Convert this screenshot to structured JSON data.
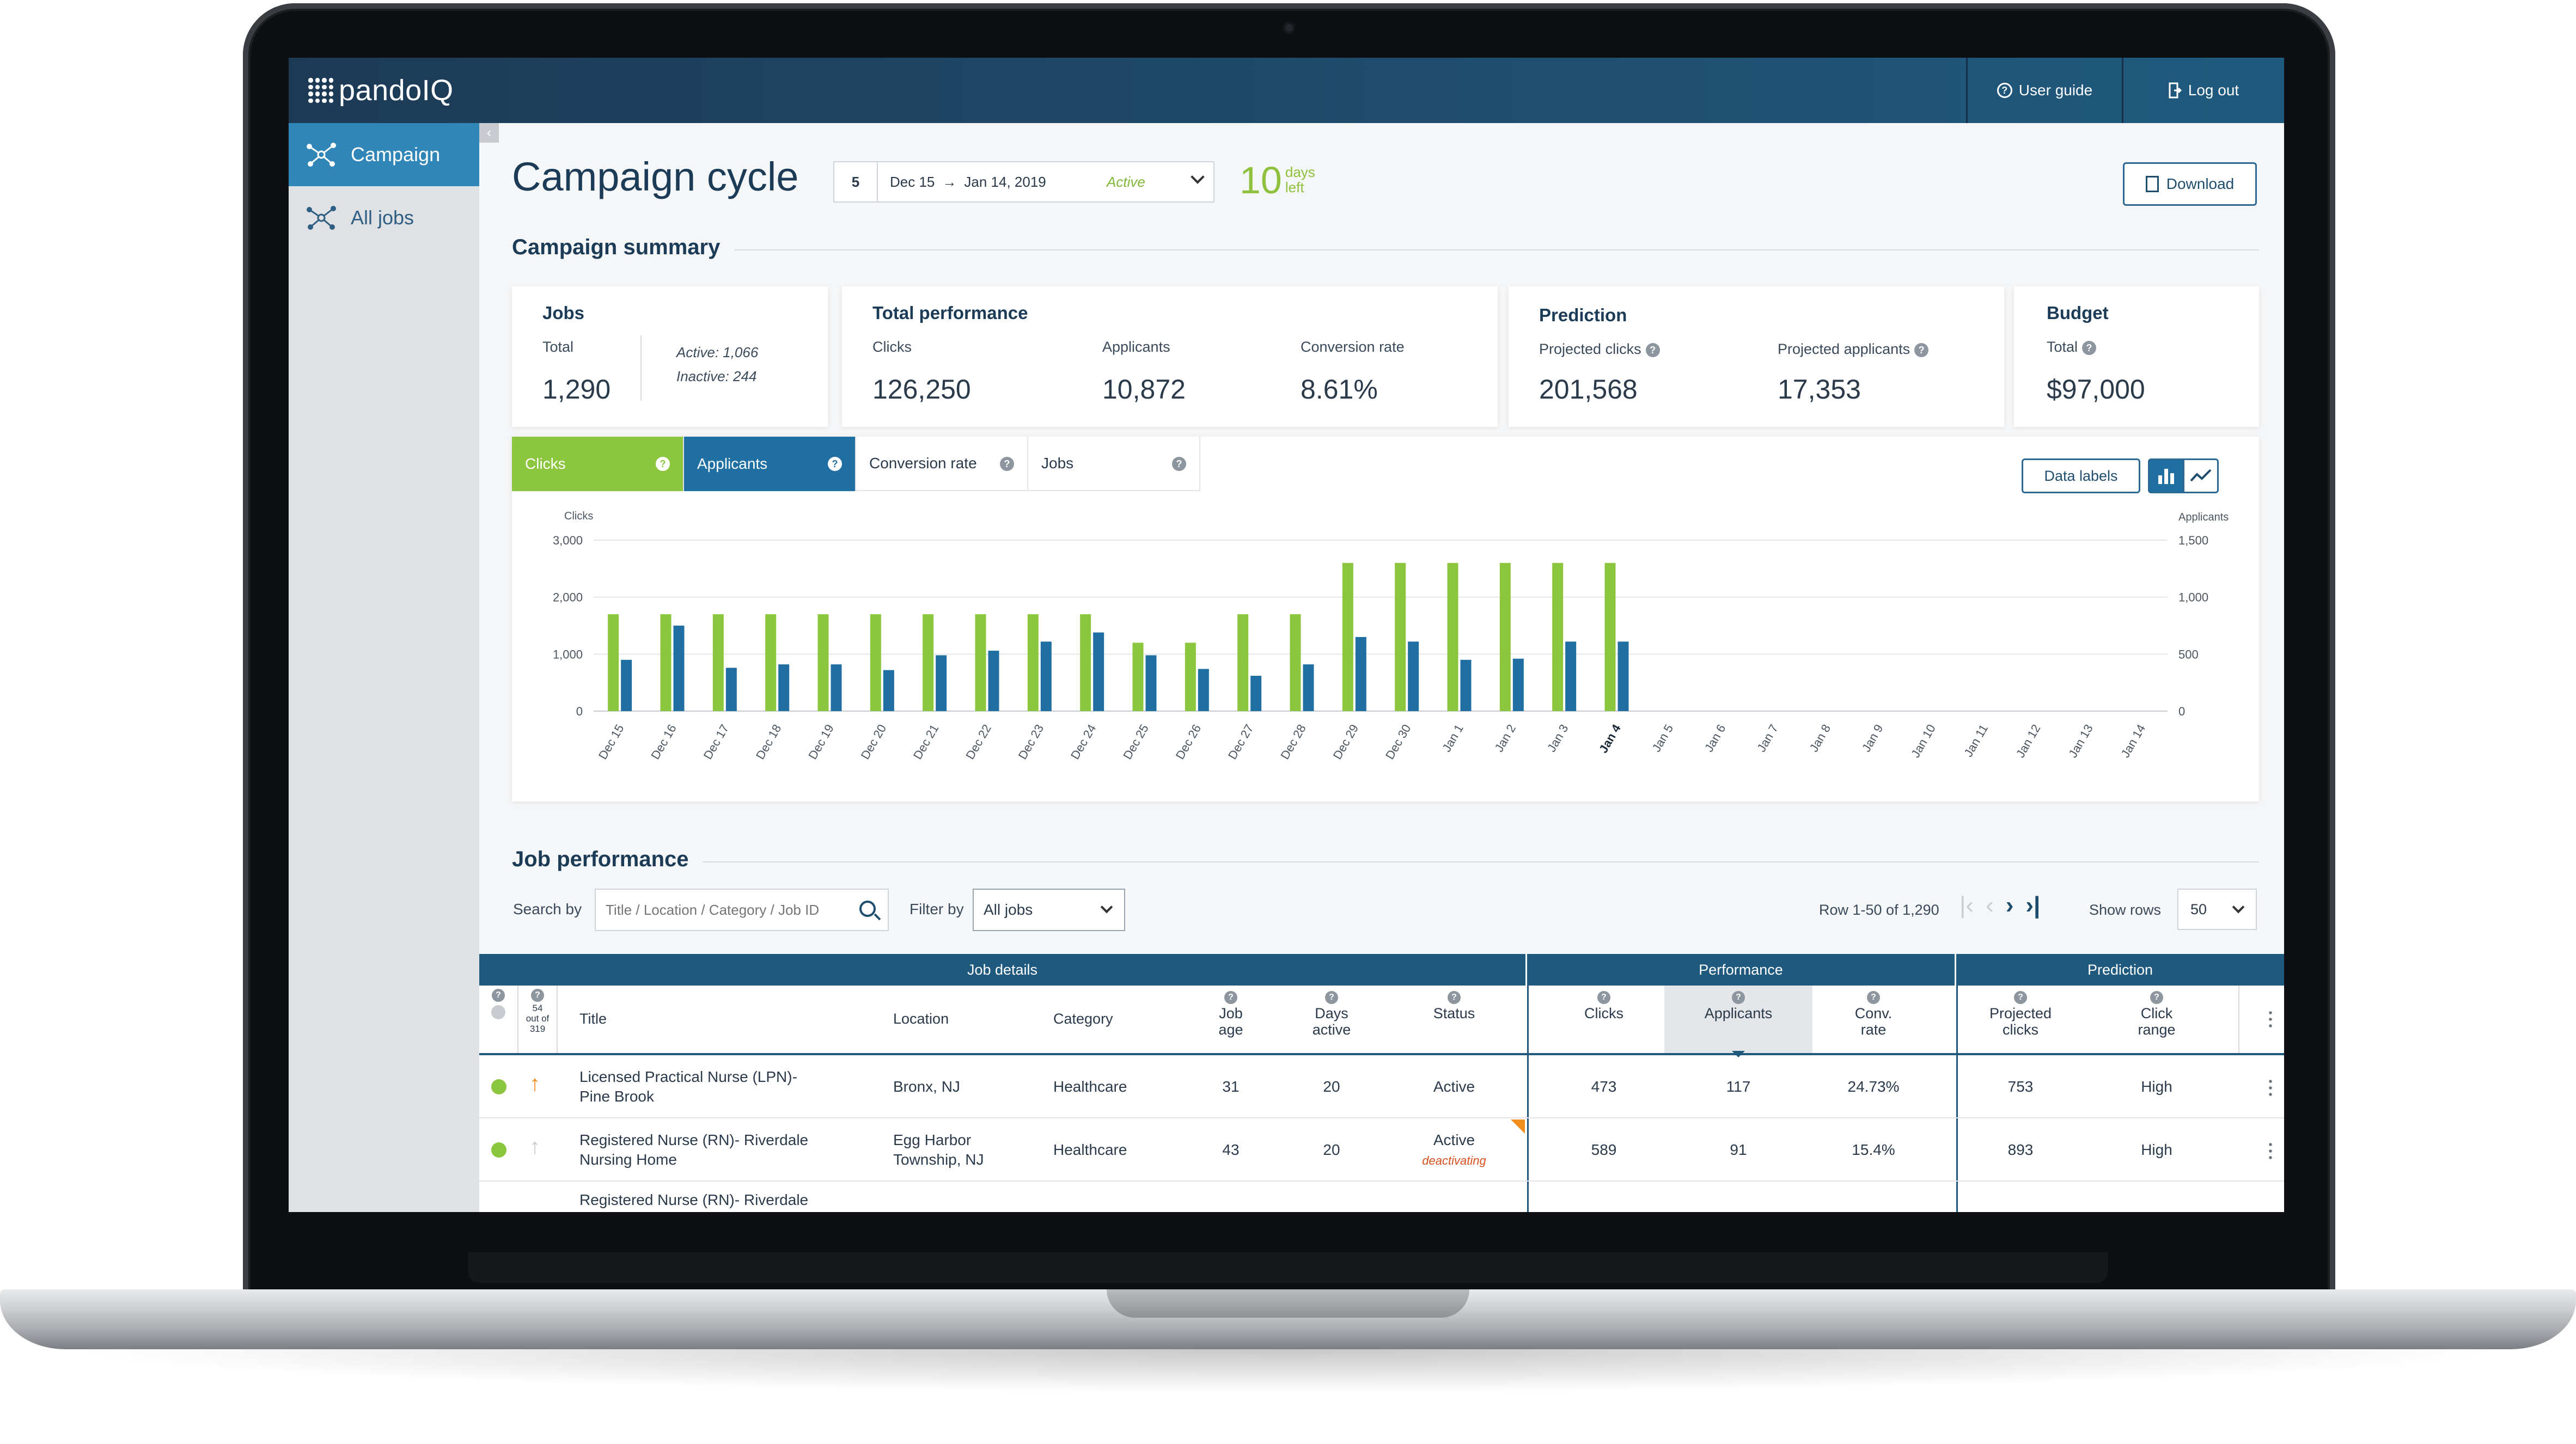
{
  "app": {
    "logo_text": "pandoIQ",
    "user_guide": "User guide",
    "log_out": "Log out"
  },
  "sidebar": {
    "items": [
      {
        "label": "Campaign",
        "icon": "network-icon",
        "active": true
      },
      {
        "label": "All jobs",
        "icon": "network-icon",
        "active": false
      }
    ]
  },
  "header": {
    "title": "Campaign cycle",
    "cycle_number": "5",
    "date_start": "Dec 15",
    "date_end": "Jan 14, 2019",
    "cycle_status": "Active",
    "days_left_number": "10",
    "days_left_word1": "days",
    "days_left_word2": "left",
    "download_label": "Download"
  },
  "summary": {
    "section_title": "Campaign summary",
    "jobs": {
      "title": "Jobs",
      "total_label": "Total",
      "total_value": "1,290",
      "active": "Active: 1,066",
      "inactive": "Inactive: 244"
    },
    "performance": {
      "title": "Total performance",
      "clicks_label": "Clicks",
      "clicks_value": "126,250",
      "applicants_label": "Applicants",
      "applicants_value": "10,872",
      "conv_label": "Conversion rate",
      "conv_value": "8.61%"
    },
    "prediction": {
      "title": "Prediction",
      "proj_clicks_label": "Projected clicks",
      "proj_clicks_value": "201,568",
      "proj_apps_label": "Projected applicants",
      "proj_apps_value": "17,353"
    },
    "budget": {
      "title": "Budget",
      "total_label": "Total",
      "total_value": "$97,000"
    }
  },
  "chart_tabs": [
    "Clicks",
    "Applicants",
    "Conversion rate",
    "Jobs"
  ],
  "chart_controls": {
    "data_labels": "Data  labels"
  },
  "colors": {
    "clicks": "#8cc63f",
    "applicants": "#1f6fa2",
    "header": "#1f4d6e",
    "active_status": "#82b83a",
    "warning": "#f28e1c"
  },
  "chart_data": {
    "type": "bar",
    "categories": [
      "Dec 15",
      "Dec 16",
      "Dec 17",
      "Dec 18",
      "Dec 19",
      "Dec 20",
      "Dec 21",
      "Dec 22",
      "Dec 23",
      "Dec 24",
      "Dec 25",
      "Dec 26",
      "Dec 27",
      "Dec 28",
      "Dec 29",
      "Dec 30",
      "Jan 1",
      "Jan 2",
      "Jan 3",
      "Jan 4",
      "Jan 5",
      "Jan 6",
      "Jan 7",
      "Jan 8",
      "Jan 9",
      "Jan 10",
      "Jan 11",
      "Jan 12",
      "Jan 13",
      "Jan 14"
    ],
    "highlight_category": "Jan 4",
    "series": [
      {
        "name": "Clicks",
        "axis": "left",
        "color": "#8cc63f",
        "values": [
          1700,
          1700,
          1700,
          1700,
          1700,
          1700,
          1700,
          1700,
          1700,
          1700,
          1200,
          1200,
          1700,
          1700,
          2600,
          2600,
          2600,
          2600,
          2600,
          2600,
          null,
          null,
          null,
          null,
          null,
          null,
          null,
          null,
          null,
          null
        ]
      },
      {
        "name": "Applicants",
        "axis": "right",
        "color": "#1f6fa2",
        "values": [
          450,
          750,
          380,
          410,
          410,
          360,
          490,
          530,
          610,
          690,
          490,
          370,
          310,
          410,
          650,
          610,
          450,
          460,
          610,
          610,
          null,
          null,
          null,
          null,
          null,
          null,
          null,
          null,
          null,
          null
        ]
      }
    ],
    "ylabel_left": "Clicks",
    "ylabel_right": "Applicants",
    "ylim_left": [
      0,
      3000
    ],
    "ylim_right": [
      0,
      1500
    ],
    "yticks_left": [
      "0",
      "1,000",
      "2,000",
      "3,000"
    ],
    "yticks_right": [
      "0",
      "500",
      "1,000",
      "1,500"
    ],
    "grid": true
  },
  "jobs_section": {
    "title": "Job performance",
    "search_label": "Search by",
    "search_placeholder": "Title / Location / Category / Job ID",
    "filter_label": "Filter by",
    "filter_value": "All jobs",
    "row_info": "Row 1-50 of 1,290",
    "show_rows_label": "Show rows",
    "show_rows_value": "50"
  },
  "table": {
    "groups": {
      "details": "Job details",
      "performance": "Performance",
      "prediction": "Prediction"
    },
    "count_note": {
      "line1": "54",
      "line2": "out of",
      "line3": "319"
    },
    "columns": {
      "title": "Title",
      "location": "Location",
      "category": "Category",
      "job_age_1": "Job",
      "job_age_2": "age",
      "days_active_1": "Days",
      "days_active_2": "active",
      "status": "Status",
      "clicks": "Clicks",
      "applicants": "Applicants",
      "conv_1": "Conv.",
      "conv_2": "rate",
      "proj_1": "Projected",
      "proj_2": "clicks",
      "range_1": "Click",
      "range_2": "range"
    },
    "rows": [
      {
        "title_1": "Licensed Practical Nurse (LPN)-",
        "title_2": "Pine Brook",
        "location_1": "Bronx, NJ",
        "location_2": "",
        "category": "Healthcare",
        "job_age": "31",
        "days_active": "20",
        "status": "Active",
        "status_note": "",
        "clicks": "473",
        "applicants": "117",
        "conv_rate": "24.73%",
        "projected_clicks": "753",
        "click_range": "High"
      },
      {
        "title_1": "Registered Nurse (RN)- Riverdale",
        "title_2": "Nursing Home",
        "location_1": "Egg Harbor",
        "location_2": "Township, NJ",
        "category": "Healthcare",
        "job_age": "43",
        "days_active": "20",
        "status": "Active",
        "status_note": "deactivating",
        "clicks": "589",
        "applicants": "91",
        "conv_rate": "15.4%",
        "projected_clicks": "893",
        "click_range": "High"
      },
      {
        "title_1": "Registered Nurse (RN)- Riverdale"
      }
    ]
  }
}
